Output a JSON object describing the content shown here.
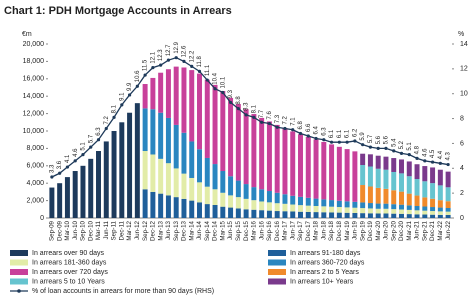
{
  "chart_data": {
    "type": "stacked-bar-line",
    "title": "Chart 1: PDH Mortgage Accounts in Arrears",
    "y_label": "€m",
    "y2_label": "%",
    "categories": [
      "Sep-09",
      "Dec-09",
      "Mar-10",
      "Jun-10",
      "Sep-10",
      "Dec-10",
      "Mar-11",
      "Jun-11",
      "Sep-11",
      "Dec-11",
      "Mar-12",
      "Jun-12",
      "Sep-12",
      "Dec-12",
      "Mar-13",
      "Jun-13",
      "Sep-13",
      "Dec-13",
      "Mar-14",
      "Jun-14",
      "Sep-14",
      "Dec-14",
      "Mar-15",
      "Jun-15",
      "Sep-15",
      "Dec-15",
      "Mar-16",
      "Jun-16",
      "Sep-16",
      "Dec-16",
      "Mar-17",
      "Jun-17",
      "Sep-17",
      "Dec-17",
      "Mar-18",
      "Jun-18",
      "Sep-18",
      "Dec-18",
      "Mar-19",
      "Jun-19",
      "Sep-19",
      "Dec-19",
      "Mar-20",
      "Jun-20",
      "Sep-20",
      "Dec-20",
      "Mar-21",
      "Jun-21",
      "Sep-21",
      "Dec-21",
      "Mar-22",
      "Jun-22"
    ],
    "ylim": [
      0,
      20000
    ],
    "yticks": [
      0,
      {
        "value": 2000,
        "label": "2,000"
      },
      {
        "value": 4000,
        "label": "4,000"
      },
      {
        "value": 6000,
        "label": "6,000"
      },
      {
        "value": 8000,
        "label": "8,000"
      },
      {
        "value": 10000,
        "label": "10,000"
      },
      {
        "value": 12000,
        "label": "12,000"
      },
      {
        "value": 14000,
        "label": "14,000"
      },
      {
        "value": 16000,
        "label": "16,000"
      },
      {
        "value": 18000,
        "label": "18,000"
      },
      {
        "value": 20000,
        "label": "20,000"
      }
    ],
    "y2lim": [
      0,
      14
    ],
    "y2ticks": [
      0,
      2,
      4,
      6,
      8,
      10,
      12,
      14
    ],
    "grid": false,
    "series": [
      {
        "name": "In arrears over 90 days",
        "color": "#1d3a5c",
        "values": [
          3500,
          4000,
          4700,
          5400,
          6000,
          6800,
          7700,
          8800,
          10000,
          11000,
          12100,
          13200,
          null,
          null,
          null,
          null,
          null,
          null,
          null,
          null,
          null,
          null,
          null,
          null,
          null,
          null,
          null,
          null,
          null,
          null,
          null,
          null,
          null,
          null,
          null,
          null,
          null,
          null,
          null,
          null,
          null,
          null,
          null,
          null,
          null,
          null,
          null,
          null,
          null,
          null,
          null,
          null
        ]
      },
      {
        "name": "In arrears 91-180 days",
        "color": "#1f5f9a",
        "values": [
          null,
          null,
          null,
          null,
          null,
          null,
          null,
          null,
          null,
          null,
          null,
          null,
          3300,
          3000,
          2800,
          2600,
          2400,
          2200,
          2000,
          1800,
          1600,
          1500,
          1300,
          1200,
          1100,
          1000,
          950,
          900,
          850,
          800,
          780,
          750,
          720,
          700,
          680,
          660,
          640,
          620,
          600,
          580,
          560,
          540,
          520,
          520,
          500,
          480,
          450,
          420,
          400,
          380,
          360,
          350
        ]
      },
      {
        "name": "In arrears 181-360 days",
        "color": "#e2eca8",
        "values": [
          null,
          null,
          null,
          null,
          null,
          null,
          null,
          null,
          null,
          null,
          null,
          null,
          4400,
          4300,
          4000,
          3700,
          3300,
          2900,
          2600,
          2300,
          2000,
          1800,
          1600,
          1400,
          1300,
          1200,
          1100,
          1000,
          950,
          900,
          850,
          800,
          760,
          720,
          700,
          680,
          660,
          640,
          620,
          600,
          580,
          560,
          540,
          540,
          520,
          500,
          480,
          460,
          440,
          420,
          400,
          380
        ]
      },
      {
        "name": "In arrears 360-720 days",
        "color": "#2a86c0",
        "values": [
          null,
          null,
          null,
          null,
          null,
          null,
          null,
          null,
          null,
          null,
          null,
          null,
          4900,
          5200,
          5300,
          5200,
          5000,
          4700,
          4200,
          3800,
          3300,
          2900,
          2500,
          2200,
          1900,
          1700,
          1500,
          1400,
          1300,
          1200,
          1100,
          1000,
          950,
          900,
          850,
          800,
          760,
          720,
          700,
          680,
          650,
          620,
          600,
          590,
          570,
          550,
          520,
          500,
          480,
          460,
          440,
          420
        ]
      },
      {
        "name": "In arrears over 720 days",
        "color": "#c8409a",
        "values": [
          null,
          null,
          null,
          null,
          null,
          null,
          null,
          null,
          null,
          null,
          null,
          null,
          2800,
          3600,
          4600,
          5600,
          6700,
          7500,
          8200,
          8700,
          9000,
          9100,
          9200,
          9000,
          8800,
          8600,
          8400,
          8200,
          8000,
          7800,
          7600,
          7400,
          7200,
          7000,
          6800,
          6600,
          6400,
          6200,
          6000,
          5800,
          null,
          null,
          null,
          null,
          null,
          null,
          null,
          null,
          null,
          null,
          null,
          null
        ]
      },
      {
        "name": "In arrears 2 to 5 Years",
        "color": "#f08a2c",
        "values": [
          null,
          null,
          null,
          null,
          null,
          null,
          null,
          null,
          null,
          null,
          null,
          null,
          null,
          null,
          null,
          null,
          null,
          null,
          null,
          null,
          null,
          null,
          null,
          null,
          null,
          null,
          null,
          null,
          null,
          null,
          null,
          null,
          null,
          null,
          null,
          null,
          null,
          null,
          null,
          null,
          2000,
          1900,
          1800,
          1700,
          1600,
          1500,
          1350,
          1200,
          1050,
          950,
          850,
          780
        ]
      },
      {
        "name": "In arrears 5 to 10 Years",
        "color": "#66c4cf",
        "values": [
          null,
          null,
          null,
          null,
          null,
          null,
          null,
          null,
          null,
          null,
          null,
          null,
          null,
          null,
          null,
          null,
          null,
          null,
          null,
          null,
          null,
          null,
          null,
          null,
          null,
          null,
          null,
          null,
          null,
          null,
          null,
          null,
          null,
          null,
          null,
          null,
          null,
          null,
          null,
          null,
          2300,
          2300,
          2200,
          2200,
          2100,
          2100,
          2000,
          1900,
          1850,
          1800,
          1700,
          1600
        ]
      },
      {
        "name": "In arrears 10+ Years",
        "color": "#7a3a8c",
        "values": [
          null,
          null,
          null,
          null,
          null,
          null,
          null,
          null,
          null,
          null,
          null,
          null,
          null,
          null,
          null,
          null,
          null,
          null,
          null,
          null,
          null,
          null,
          null,
          null,
          null,
          null,
          null,
          null,
          null,
          null,
          null,
          null,
          null,
          null,
          null,
          null,
          null,
          null,
          null,
          null,
          1300,
          1400,
          1500,
          1500,
          1600,
          1600,
          1700,
          1700,
          1750,
          1800,
          1800,
          1800
        ]
      },
      {
        "name": "% of loan accounts in arrears for more than 90 days (RHS)",
        "color": "#1e3a5a",
        "axis": "y2",
        "values": [
          3.3,
          3.6,
          4.1,
          4.6,
          5.1,
          5.7,
          6.3,
          7.2,
          8.1,
          9.1,
          9.9,
          10.6,
          11.5,
          12.1,
          12.3,
          12.7,
          12.9,
          12.6,
          12.2,
          11.8,
          11.1,
          10.4,
          10.1,
          9.3,
          8.8,
          8.3,
          8.1,
          7.7,
          7.6,
          7.3,
          7.2,
          7.1,
          6.8,
          6.6,
          6.4,
          6.3,
          6.1,
          6.1,
          6.1,
          6.2,
          5.9,
          5.7,
          5.6,
          5.6,
          5.4,
          5.2,
          5.1,
          4.8,
          4.6,
          4.5,
          4.4,
          4.3
        ]
      }
    ]
  }
}
